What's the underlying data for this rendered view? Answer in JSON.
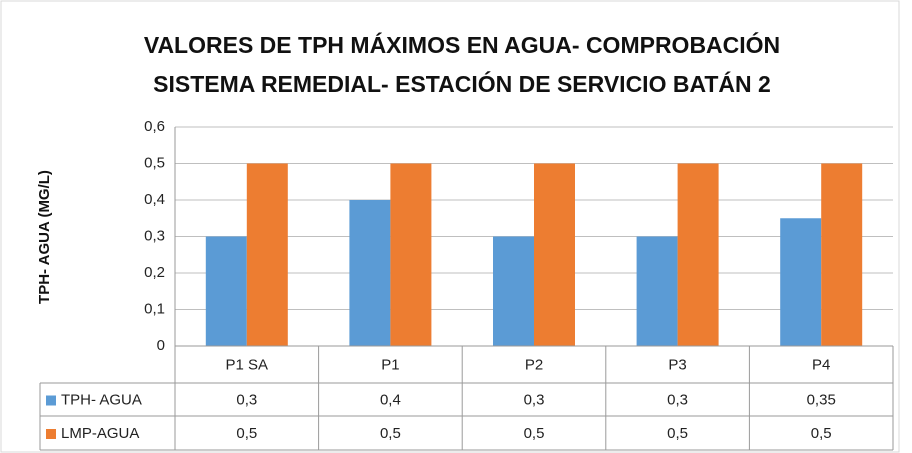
{
  "chart_data": {
    "type": "bar",
    "title": [
      "VALORES DE TPH MÁXIMOS EN AGUA- COMPROBACIÓN",
      "SISTEMA REMEDIAL- ESTACIÓN DE SERVICIO BATÁN 2"
    ],
    "y_label": "TPH- AGUA (MG/L)",
    "categories": [
      "P1 SA",
      "P1",
      "P2",
      "P3",
      "P4"
    ],
    "series": [
      {
        "name": "TPH- AGUA",
        "color": "#5b9bd5",
        "values": [
          0.3,
          0.4,
          0.3,
          0.3,
          0.35
        ],
        "value_labels": [
          "0,3",
          "0,4",
          "0,3",
          "0,3",
          "0,35"
        ]
      },
      {
        "name": "LMP-AGUA",
        "color": "#ed7d31",
        "values": [
          0.5,
          0.5,
          0.5,
          0.5,
          0.5
        ],
        "value_labels": [
          "0,5",
          "0,5",
          "0,5",
          "0,5",
          "0,5"
        ]
      }
    ],
    "ylim": [
      0,
      0.6
    ],
    "yticks": [
      0,
      {
        "value": 0.1,
        "label": "0,1"
      },
      {
        "value": 0.2,
        "label": "0,2"
      },
      {
        "value": 0.3,
        "label": "0,3"
      },
      {
        "value": 0.4,
        "label": "0,4"
      },
      {
        "value": 0.5,
        "label": "0,5"
      },
      {
        "value": 0.6,
        "label": "0,6"
      }
    ],
    "grid": true
  }
}
